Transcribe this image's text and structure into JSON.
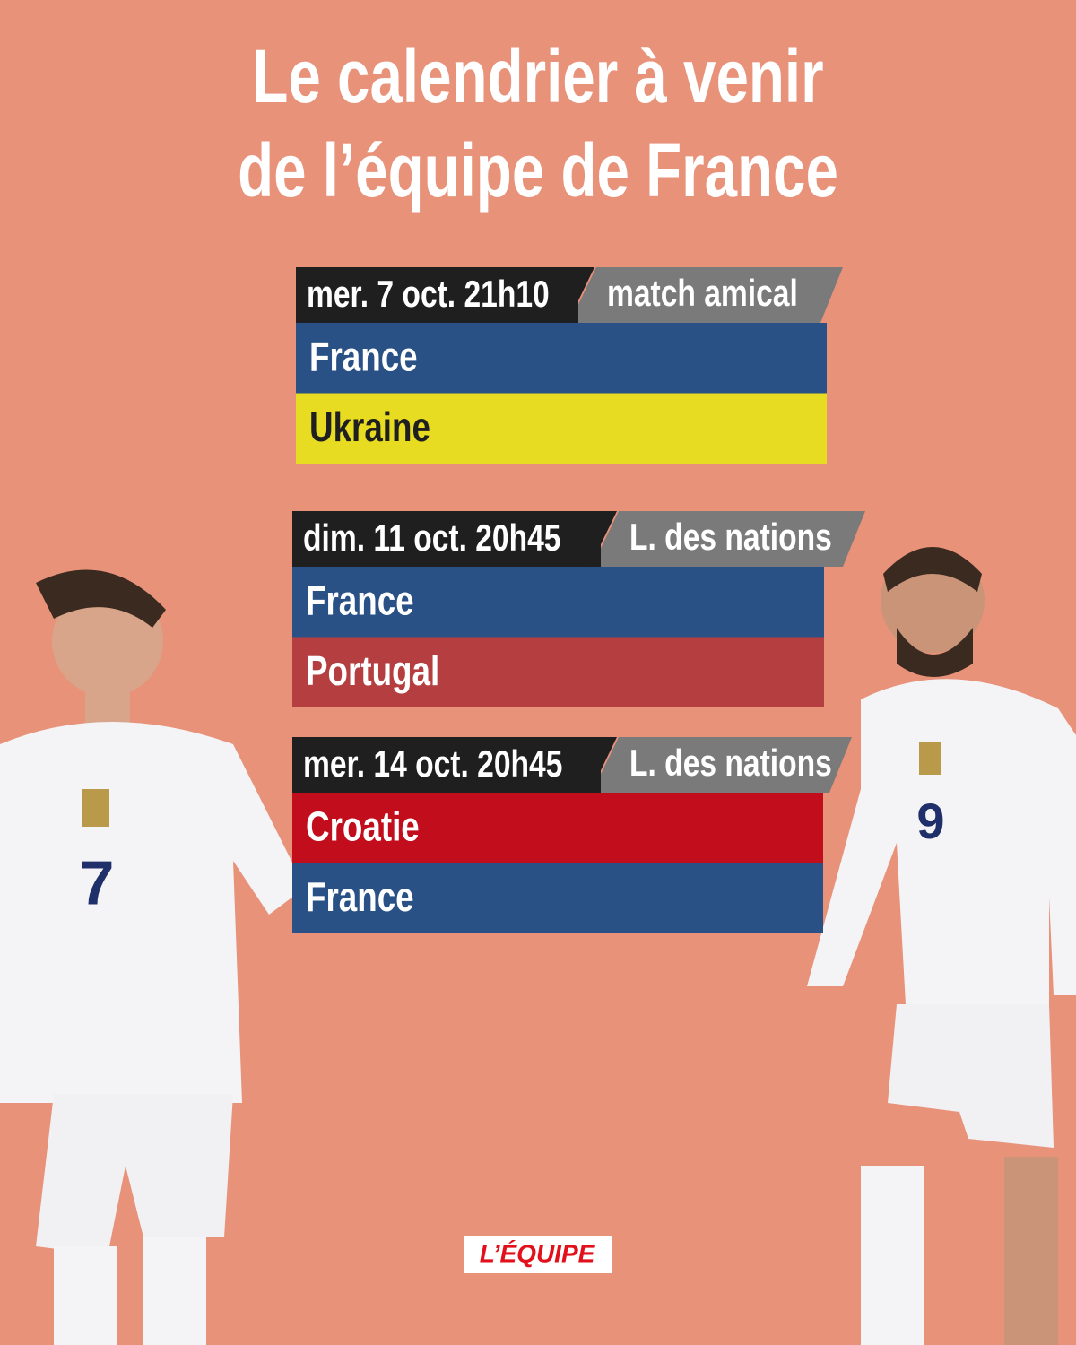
{
  "header": {
    "title_lines": [
      "Le calendrier à venir",
      "de l’équipe de France"
    ]
  },
  "matches": [
    {
      "date": "mer. 7 oct. 21h10",
      "competition": "match amical",
      "teams": [
        {
          "name": "France",
          "color": "#2a5185"
        },
        {
          "name": "Ukraine",
          "color": "#e8dc22"
        }
      ]
    },
    {
      "date": "dim. 11 oct. 20h45",
      "competition": "L. des nations",
      "teams": [
        {
          "name": "France",
          "color": "#2a5185"
        },
        {
          "name": "Portugal",
          "color": "#b53f40"
        }
      ]
    },
    {
      "date": "mer. 14 oct. 20h45",
      "competition": "L. des nations",
      "teams": [
        {
          "name": "Croatie",
          "color": "#c10d1c"
        },
        {
          "name": "France",
          "color": "#2a5185"
        }
      ]
    }
  ],
  "players": [
    {
      "number": "7"
    },
    {
      "number": "9"
    }
  ],
  "logo": "L’ÉQUIPE"
}
